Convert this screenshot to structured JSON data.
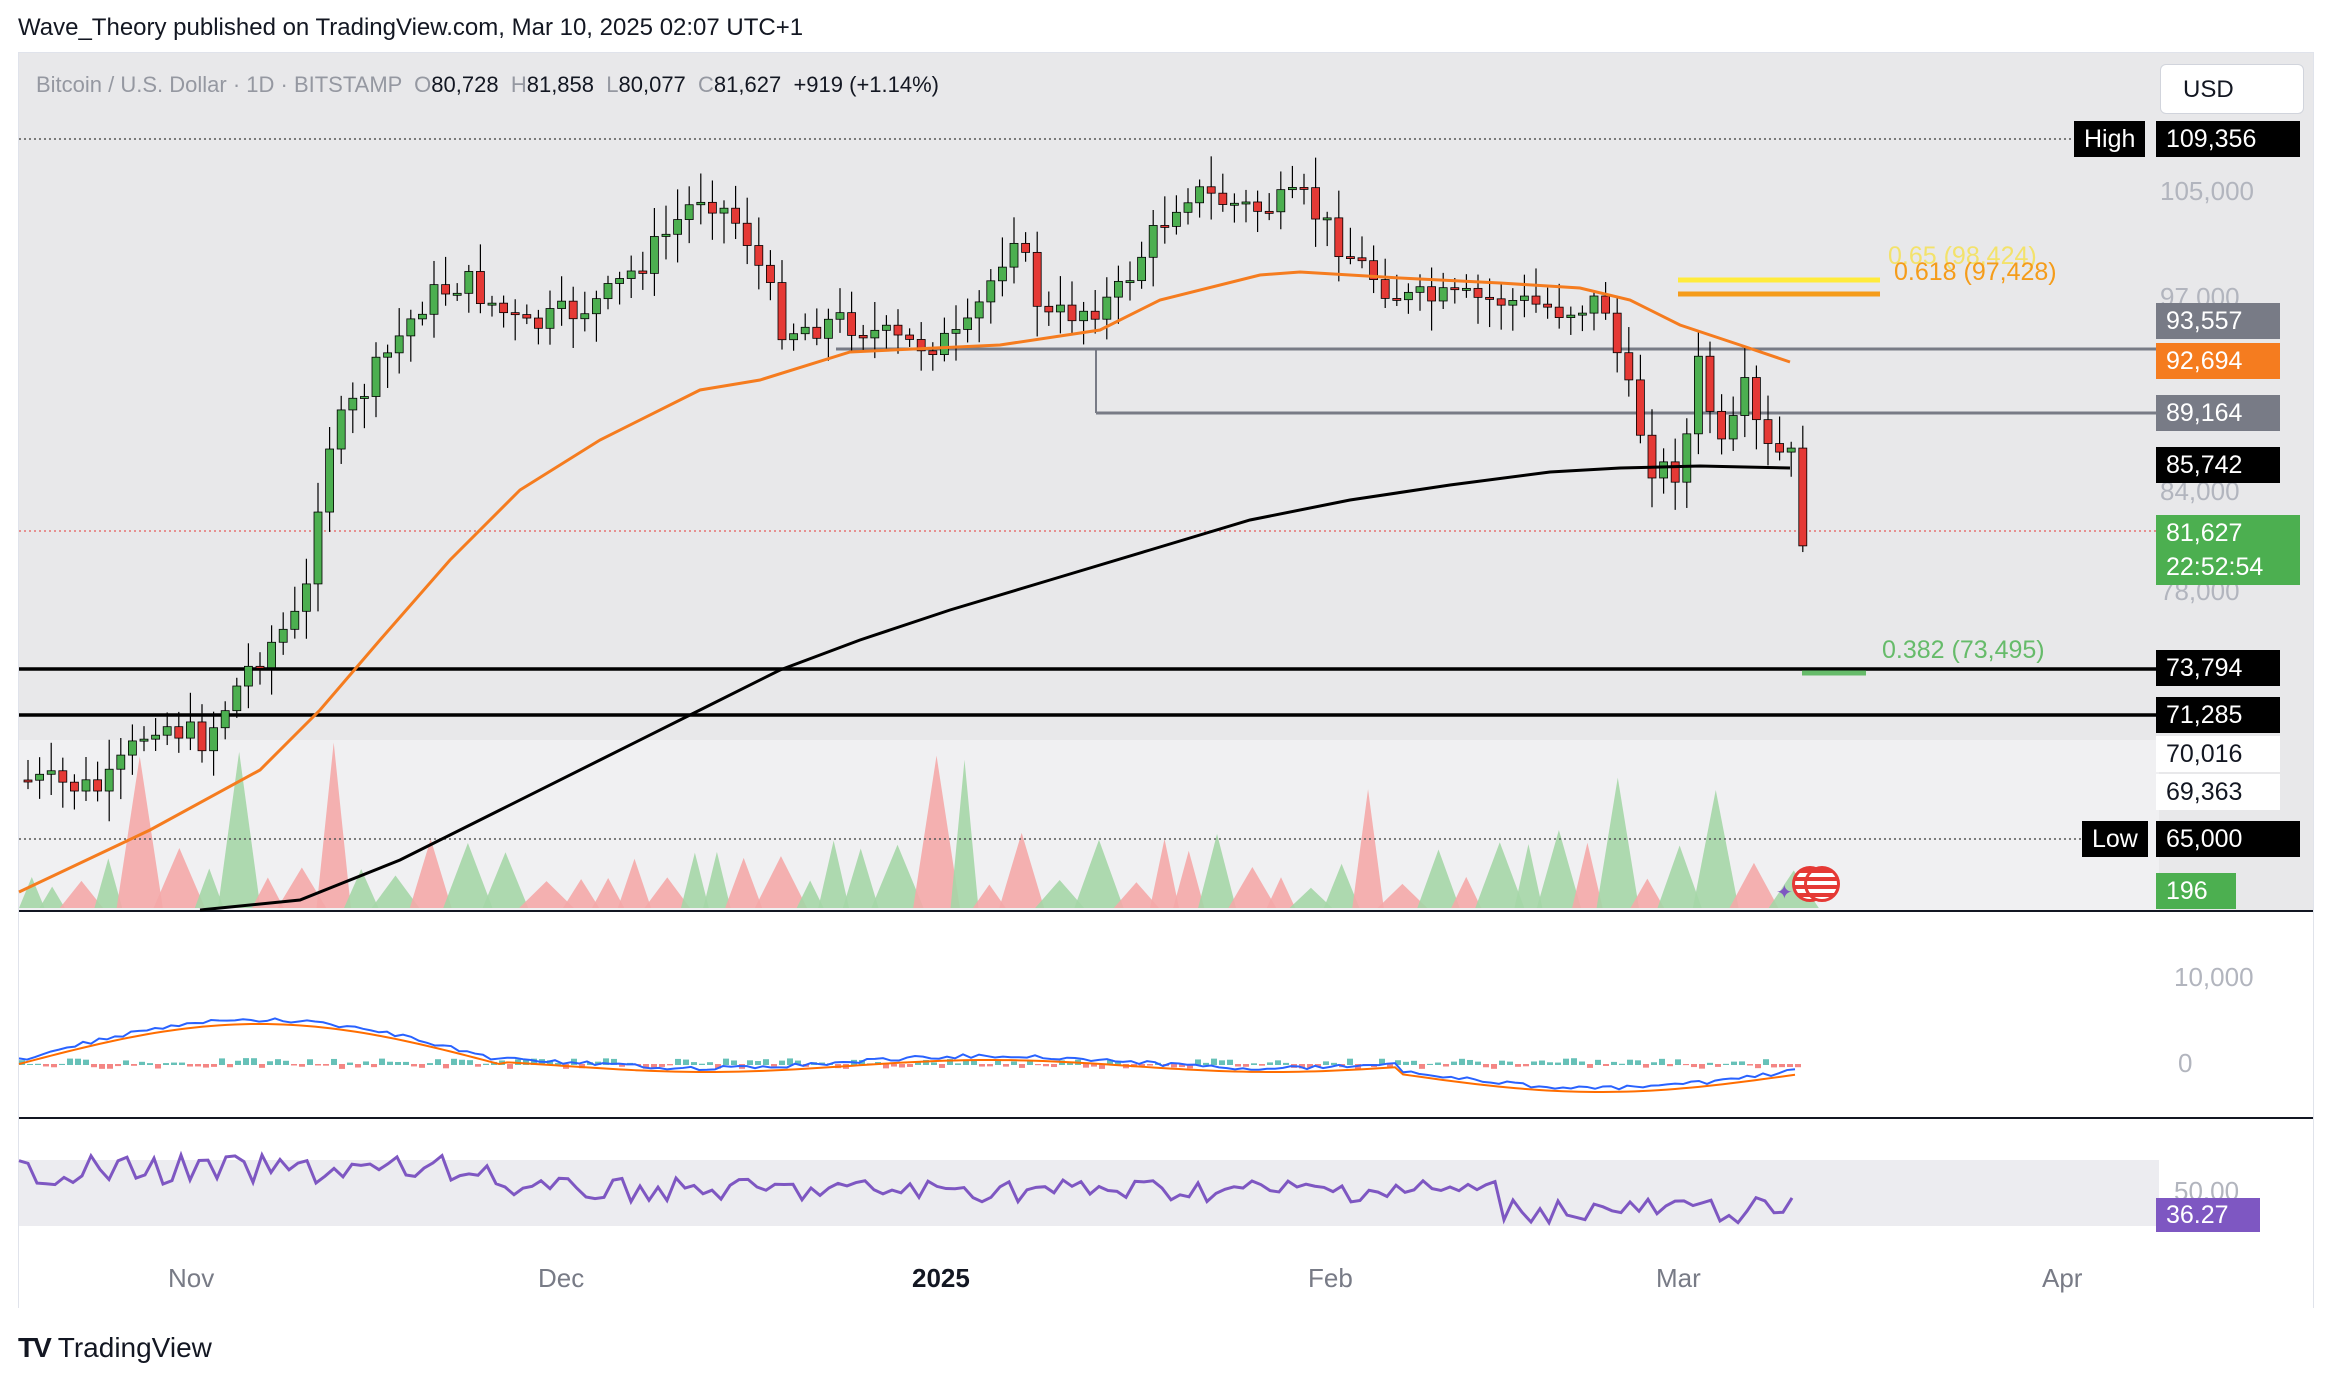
{
  "header": {
    "publisher": "Wave_Theory published on TradingView.com, Mar 10, 2025 02:07 UTC+1"
  },
  "legend": {
    "symbol": "Bitcoin / U.S. Dollar · 1D · BITSTAMP",
    "o_label": "O",
    "o": "80,728",
    "h_label": "H",
    "h": "81,858",
    "l_label": "L",
    "l": "80,077",
    "c_label": "C",
    "c": "81,627",
    "change": "+919 (+1.14%)"
  },
  "currency_button": "USD",
  "price_axis": [
    "105,000",
    "97,000",
    "84,000",
    "78,000"
  ],
  "price_labels": {
    "high_tag": "High",
    "high": "109,356",
    "level_93": "93,557",
    "ema50": "92,694",
    "level_89": "89,164",
    "ma200": "85,742",
    "last": "81,627",
    "countdown": "22:52:54",
    "s1": "73,794",
    "s2": "71,285",
    "l70": "70,016",
    "l69": "69,363",
    "low_tag": "Low",
    "low": "65,000",
    "volume": "196"
  },
  "fib": {
    "f65": "0.65 (98,424)",
    "f618": "0.618 (97,428)",
    "f382": "0.382 (73,495)"
  },
  "macd_axis": [
    "10,000",
    "0"
  ],
  "rsi": {
    "axis": "50.00",
    "value": "36.27"
  },
  "time_axis": [
    "Nov",
    "Dec",
    "2025",
    "Feb",
    "Mar",
    "Apr"
  ],
  "footer": {
    "brand": "TradingView"
  },
  "colors": {
    "up": "#26a69a",
    "down": "#ef5350",
    "ema": "#f57c1f",
    "ma200": "#000000",
    "rsi": "#7e57c2",
    "fib_yellow": "#ffeb3b",
    "fib_orange": "#f59c1a",
    "fib_green": "#66bb6a"
  }
}
